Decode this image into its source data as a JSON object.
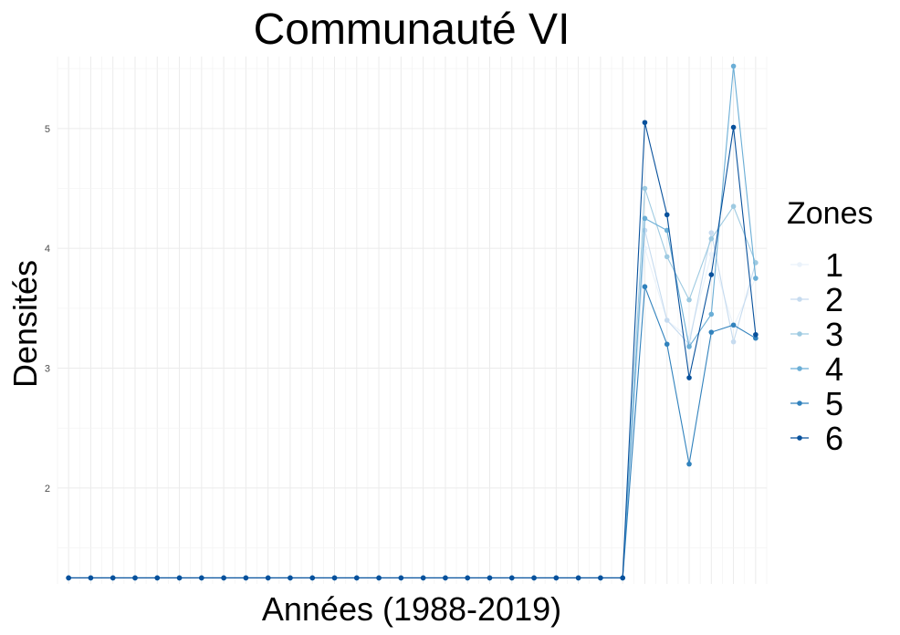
{
  "chart_data": {
    "type": "line",
    "title": "Communauté VI",
    "xlabel": "Années (1988-2019)",
    "ylabel": "Densités",
    "x": [
      1988,
      1989,
      1990,
      1991,
      1992,
      1993,
      1994,
      1995,
      1996,
      1997,
      1998,
      1999,
      2000,
      2001,
      2002,
      2003,
      2004,
      2005,
      2006,
      2007,
      2008,
      2009,
      2010,
      2011,
      2012,
      2013,
      2014,
      2015,
      2016,
      2017,
      2018,
      2019
    ],
    "x_ticks_labeled": false,
    "ylim": [
      1.2,
      5.6
    ],
    "yticks": [
      2,
      3,
      4,
      5
    ],
    "ytick_labels": [
      "2",
      "3",
      "4",
      "5"
    ],
    "grid": true,
    "legend": {
      "title": "Zones",
      "position": "right"
    },
    "series": [
      {
        "name": "1",
        "color": "#eaf2fa",
        "values": [
          1.25,
          1.25,
          1.25,
          1.25,
          1.25,
          1.25,
          1.25,
          1.25,
          1.25,
          1.25,
          1.25,
          1.25,
          1.25,
          1.25,
          1.25,
          1.25,
          1.25,
          1.25,
          1.25,
          1.25,
          1.25,
          1.25,
          1.25,
          1.25,
          1.25,
          1.25,
          4.0,
          3.4,
          3.25,
          3.95,
          3.35,
          3.75
        ]
      },
      {
        "name": "2",
        "color": "#c6dbef",
        "values": [
          1.25,
          1.25,
          1.25,
          1.25,
          1.25,
          1.25,
          1.25,
          1.25,
          1.25,
          1.25,
          1.25,
          1.25,
          1.25,
          1.25,
          1.25,
          1.25,
          1.25,
          1.25,
          1.25,
          1.25,
          1.25,
          1.25,
          1.25,
          1.25,
          1.25,
          1.25,
          4.15,
          3.4,
          3.2,
          4.13,
          3.22,
          3.88
        ]
      },
      {
        "name": "3",
        "color": "#9ecae1",
        "values": [
          1.25,
          1.25,
          1.25,
          1.25,
          1.25,
          1.25,
          1.25,
          1.25,
          1.25,
          1.25,
          1.25,
          1.25,
          1.25,
          1.25,
          1.25,
          1.25,
          1.25,
          1.25,
          1.25,
          1.25,
          1.25,
          1.25,
          1.25,
          1.25,
          1.25,
          1.25,
          4.5,
          3.93,
          3.57,
          4.08,
          4.35,
          3.88
        ]
      },
      {
        "name": "4",
        "color": "#6baed6",
        "values": [
          1.25,
          1.25,
          1.25,
          1.25,
          1.25,
          1.25,
          1.25,
          1.25,
          1.25,
          1.25,
          1.25,
          1.25,
          1.25,
          1.25,
          1.25,
          1.25,
          1.25,
          1.25,
          1.25,
          1.25,
          1.25,
          1.25,
          1.25,
          1.25,
          1.25,
          1.25,
          4.25,
          4.15,
          3.18,
          3.45,
          5.52,
          3.75
        ]
      },
      {
        "name": "5",
        "color": "#3182bd",
        "values": [
          1.25,
          1.25,
          1.25,
          1.25,
          1.25,
          1.25,
          1.25,
          1.25,
          1.25,
          1.25,
          1.25,
          1.25,
          1.25,
          1.25,
          1.25,
          1.25,
          1.25,
          1.25,
          1.25,
          1.25,
          1.25,
          1.25,
          1.25,
          1.25,
          1.25,
          1.25,
          3.68,
          3.2,
          2.2,
          3.3,
          3.36,
          3.25
        ]
      },
      {
        "name": "6",
        "color": "#08519c",
        "values": [
          1.25,
          1.25,
          1.25,
          1.25,
          1.25,
          1.25,
          1.25,
          1.25,
          1.25,
          1.25,
          1.25,
          1.25,
          1.25,
          1.25,
          1.25,
          1.25,
          1.25,
          1.25,
          1.25,
          1.25,
          1.25,
          1.25,
          1.25,
          1.25,
          1.25,
          1.25,
          5.05,
          4.28,
          2.92,
          3.78,
          5.01,
          3.28
        ]
      }
    ]
  }
}
